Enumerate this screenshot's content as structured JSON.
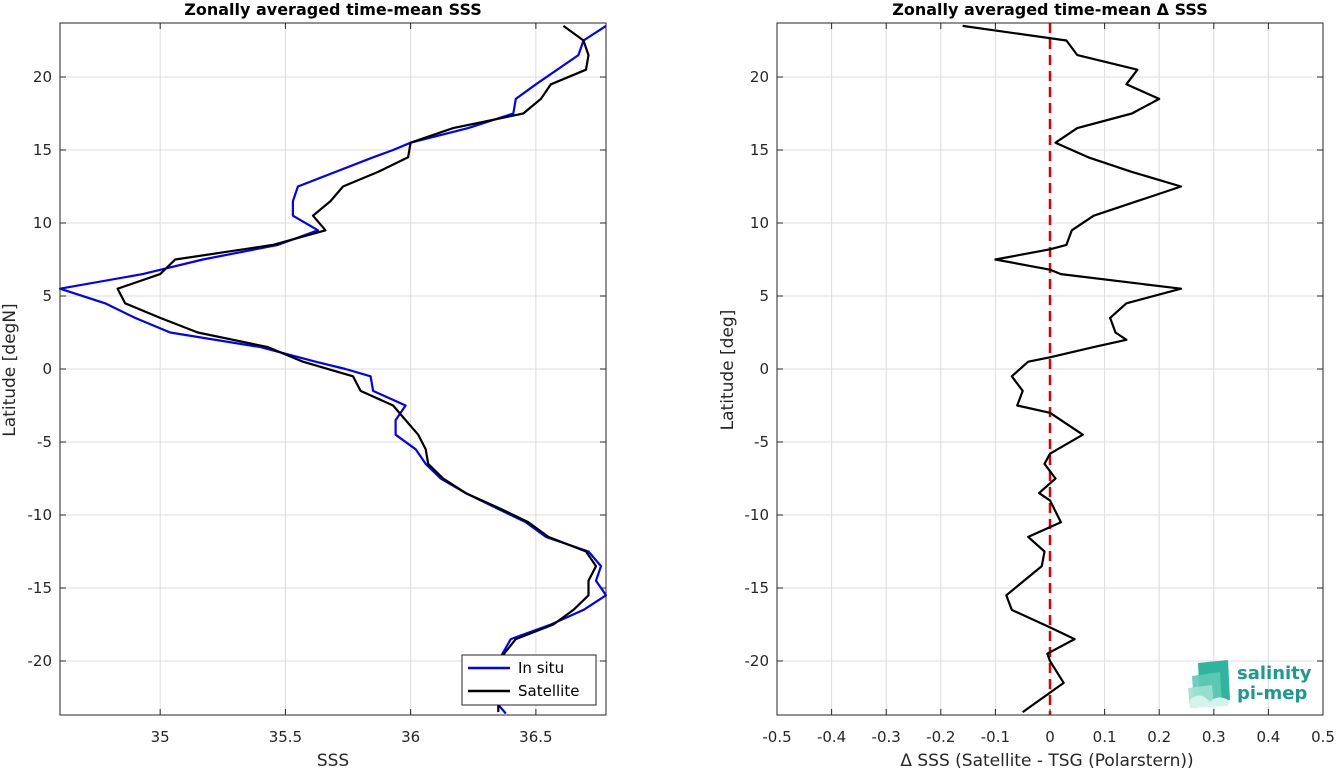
{
  "chart_data": [
    {
      "type": "line",
      "title": "Zonally averaged time-mean SSS",
      "xlabel": "SSS",
      "ylabel": "Latitude [degN]",
      "xlim": [
        34.6,
        36.78
      ],
      "ylim": [
        -23.7,
        23.7
      ],
      "xticks": [
        35,
        35.5,
        36,
        36.5
      ],
      "yticks": [
        -20,
        -15,
        -10,
        -5,
        0,
        5,
        10,
        15,
        20
      ],
      "grid": true,
      "legend": "bottom-right",
      "series": [
        {
          "name": "In situ",
          "color": "#0000ff",
          "points": [
            [
              36.78,
              23.5
            ],
            [
              36.69,
              22.5
            ],
            [
              36.67,
              21.5
            ],
            [
              36.5,
              19.5
            ],
            [
              36.42,
              18.5
            ],
            [
              36.41,
              17.5
            ],
            [
              36.23,
              16.5
            ],
            [
              36.0,
              15.5
            ],
            [
              35.93,
              15.0
            ],
            [
              35.85,
              14.5
            ],
            [
              35.55,
              12.5
            ],
            [
              35.53,
              11.5
            ],
            [
              35.53,
              10.5
            ],
            [
              35.63,
              9.5
            ],
            [
              35.47,
              8.5
            ],
            [
              35.17,
              7.5
            ],
            [
              34.93,
              6.5
            ],
            [
              34.6,
              5.5
            ],
            [
              34.78,
              4.5
            ],
            [
              34.9,
              3.5
            ],
            [
              35.04,
              2.5
            ],
            [
              35.4,
              1.5
            ],
            [
              35.62,
              0.5
            ],
            [
              35.74,
              0.0
            ],
            [
              35.84,
              -0.5
            ],
            [
              35.85,
              -1.5
            ],
            [
              35.98,
              -2.5
            ],
            [
              35.94,
              -3.5
            ],
            [
              35.94,
              -4.5
            ],
            [
              36.02,
              -5.5
            ],
            [
              36.06,
              -6.5
            ],
            [
              36.12,
              -7.5
            ],
            [
              36.22,
              -8.5
            ],
            [
              36.34,
              -9.5
            ],
            [
              36.46,
              -10.5
            ],
            [
              36.54,
              -11.5
            ],
            [
              36.71,
              -12.5
            ],
            [
              36.76,
              -13.5
            ],
            [
              36.74,
              -14.5
            ],
            [
              36.78,
              -15.5
            ],
            [
              36.69,
              -16.5
            ],
            [
              36.56,
              -17.5
            ],
            [
              36.4,
              -18.5
            ],
            [
              36.35,
              -20.0
            ],
            [
              36.35,
              -23.0
            ],
            [
              36.38,
              -23.6
            ]
          ]
        },
        {
          "name": "Satellite",
          "color": "#000000",
          "points": [
            [
              36.61,
              23.5
            ],
            [
              36.69,
              22.5
            ],
            [
              36.71,
              21.5
            ],
            [
              36.7,
              20.5
            ],
            [
              36.56,
              19.5
            ],
            [
              36.52,
              18.5
            ],
            [
              36.45,
              17.5
            ],
            [
              36.17,
              16.5
            ],
            [
              36.0,
              15.5
            ],
            [
              35.99,
              14.5
            ],
            [
              35.87,
              13.5
            ],
            [
              35.73,
              12.5
            ],
            [
              35.68,
              11.5
            ],
            [
              35.61,
              10.5
            ],
            [
              35.66,
              9.5
            ],
            [
              35.45,
              8.5
            ],
            [
              35.06,
              7.5
            ],
            [
              35.0,
              6.5
            ],
            [
              34.83,
              5.5
            ],
            [
              34.86,
              4.5
            ],
            [
              35.0,
              3.5
            ],
            [
              35.15,
              2.5
            ],
            [
              35.43,
              1.5
            ],
            [
              35.57,
              0.5
            ],
            [
              35.77,
              -0.5
            ],
            [
              35.8,
              -1.5
            ],
            [
              35.93,
              -2.5
            ],
            [
              35.98,
              -3.5
            ],
            [
              36.03,
              -4.5
            ],
            [
              36.06,
              -5.5
            ],
            [
              36.07,
              -6.5
            ],
            [
              36.13,
              -7.5
            ],
            [
              36.22,
              -8.5
            ],
            [
              36.35,
              -9.5
            ],
            [
              36.47,
              -10.5
            ],
            [
              36.55,
              -11.5
            ],
            [
              36.7,
              -12.5
            ],
            [
              36.74,
              -13.5
            ],
            [
              36.71,
              -14.5
            ],
            [
              36.71,
              -15.5
            ],
            [
              36.65,
              -16.5
            ],
            [
              36.57,
              -17.5
            ],
            [
              36.42,
              -18.5
            ],
            [
              36.35,
              -20.0
            ],
            [
              36.35,
              -23.5
            ]
          ]
        }
      ]
    },
    {
      "type": "line",
      "title": "Zonally averaged time-mean Δ SSS",
      "xlabel": "Δ SSS (Satellite - TSG (Polarstern))",
      "ylabel": "Latitude [deg]",
      "xlim": [
        -0.5,
        0.5
      ],
      "ylim": [
        -23.7,
        23.7
      ],
      "xticks": [
        -0.5,
        -0.4,
        -0.3,
        -0.2,
        -0.1,
        0,
        0.1,
        0.2,
        0.3,
        0.4,
        0.5
      ],
      "xticklabels": [
        "-0.5",
        "-0.4",
        "-0.3",
        "-0.2",
        "-0.1",
        "0",
        "0.1",
        "0.2",
        "0.3",
        "0.4",
        "0.5"
      ],
      "yticks": [
        -20,
        -15,
        -10,
        -5,
        0,
        5,
        10,
        15,
        20
      ],
      "grid": true,
      "reference_line": {
        "x": 0,
        "color": "#dd0000",
        "style": "dashed"
      },
      "series": [
        {
          "color": "#000000",
          "points": [
            [
              -0.16,
              23.5
            ],
            [
              0.03,
              22.5
            ],
            [
              0.05,
              21.5
            ],
            [
              0.16,
              20.5
            ],
            [
              0.14,
              19.5
            ],
            [
              0.2,
              18.5
            ],
            [
              0.15,
              17.5
            ],
            [
              0.05,
              16.5
            ],
            [
              0.01,
              15.5
            ],
            [
              0.07,
              14.5
            ],
            [
              0.15,
              13.5
            ],
            [
              0.24,
              12.5
            ],
            [
              0.16,
              11.5
            ],
            [
              0.08,
              10.5
            ],
            [
              0.04,
              9.5
            ],
            [
              0.03,
              8.5
            ],
            [
              0.0,
              8.2
            ],
            [
              -0.1,
              7.5
            ],
            [
              0.0,
              6.8
            ],
            [
              0.02,
              6.5
            ],
            [
              0.24,
              5.5
            ],
            [
              0.14,
              4.5
            ],
            [
              0.11,
              3.5
            ],
            [
              0.12,
              2.5
            ],
            [
              0.14,
              2.0
            ],
            [
              0.08,
              1.5
            ],
            [
              0.0,
              0.8
            ],
            [
              -0.04,
              0.5
            ],
            [
              -0.07,
              -0.5
            ],
            [
              -0.05,
              -1.5
            ],
            [
              -0.06,
              -2.5
            ],
            [
              0.0,
              -3.0
            ],
            [
              0.06,
              -4.5
            ],
            [
              0.0,
              -5.8
            ],
            [
              -0.01,
              -6.5
            ],
            [
              0.01,
              -7.5
            ],
            [
              -0.02,
              -8.5
            ],
            [
              0.0,
              -9.0
            ],
            [
              0.02,
              -10.5
            ],
            [
              -0.04,
              -11.5
            ],
            [
              -0.01,
              -12.5
            ],
            [
              -0.015,
              -13.5
            ],
            [
              -0.08,
              -15.5
            ],
            [
              -0.07,
              -16.5
            ],
            [
              0.0,
              -17.7
            ],
            [
              0.045,
              -18.5
            ],
            [
              -0.005,
              -19.5
            ],
            [
              0.0,
              -20.0
            ],
            [
              0.025,
              -21.5
            ],
            [
              -0.05,
              -23.5
            ]
          ]
        }
      ]
    }
  ],
  "logo": {
    "line1": "salinity",
    "line2": "pi-mep"
  },
  "colors": {
    "insitu": "#0000ff",
    "satellite": "#000000",
    "zero_line": "#dd0000",
    "logo": "#1a9c8c"
  }
}
